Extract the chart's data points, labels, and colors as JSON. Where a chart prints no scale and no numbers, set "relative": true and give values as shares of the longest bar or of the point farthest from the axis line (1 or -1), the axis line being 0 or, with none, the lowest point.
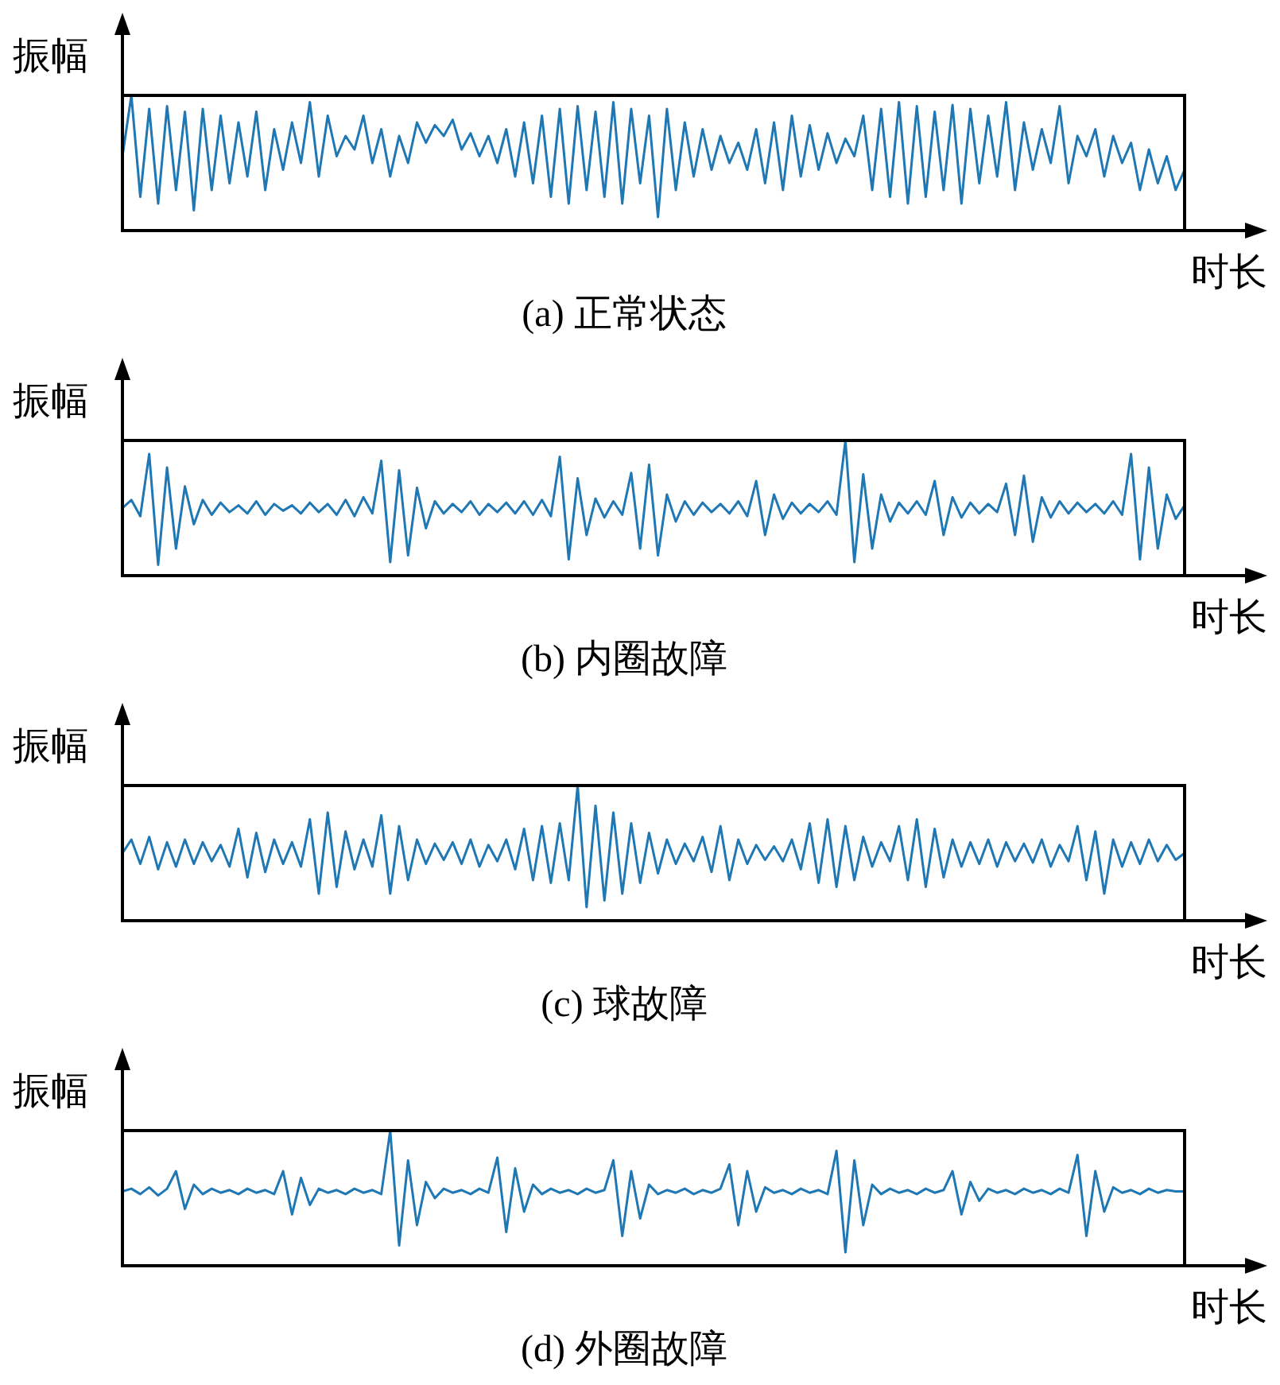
{
  "chart_data": [
    {
      "type": "line",
      "title": "(a) 正常状态",
      "xlabel": "时长",
      "ylabel": "振幅",
      "relative": true,
      "marker": "none",
      "legend": false,
      "tick_labels": false,
      "categories": [
        null,
        null,
        null,
        null,
        null,
        null,
        null,
        null,
        null,
        null,
        null,
        null,
        null,
        null,
        null,
        null,
        null,
        null,
        null,
        null,
        null,
        null,
        null,
        null,
        null,
        null,
        null,
        null,
        null,
        null,
        null,
        null,
        null,
        null,
        null,
        null,
        null,
        null,
        null,
        null,
        null,
        null,
        null,
        null,
        null,
        null,
        null,
        null,
        null,
        null,
        null,
        null,
        null,
        null,
        null,
        null,
        null,
        null,
        null,
        null,
        null,
        null,
        null,
        null,
        null,
        null,
        null,
        null,
        null,
        null,
        null,
        null,
        null,
        null,
        null,
        null,
        null,
        null,
        null,
        null,
        null,
        null,
        null,
        null,
        null,
        null,
        null,
        null,
        null,
        null,
        null,
        null,
        null,
        null,
        null,
        null,
        null,
        null,
        null,
        null,
        null,
        null,
        null,
        null,
        null,
        null,
        null,
        null,
        null,
        null,
        null,
        null,
        null,
        null,
        null,
        null,
        null,
        null,
        null,
        null
      ],
      "series": [
        {
          "color": "#1f77b4",
          "values": [
            0.55,
            1,
            0.25,
            0.9,
            0.2,
            0.92,
            0.3,
            0.88,
            0.15,
            0.9,
            0.3,
            0.85,
            0.35,
            0.8,
            0.4,
            0.88,
            0.3,
            0.75,
            0.45,
            0.8,
            0.5,
            0.95,
            0.4,
            0.85,
            0.55,
            0.7,
            0.6,
            0.85,
            0.5,
            0.75,
            0.4,
            0.7,
            0.5,
            0.8,
            0.65,
            0.78,
            0.7,
            0.82,
            0.6,
            0.72,
            0.55,
            0.7,
            0.5,
            0.75,
            0.4,
            0.8,
            0.35,
            0.85,
            0.25,
            0.9,
            0.2,
            0.92,
            0.3,
            0.88,
            0.25,
            0.95,
            0.2,
            0.9,
            0.35,
            0.85,
            0.1,
            0.9,
            0.3,
            0.8,
            0.4,
            0.75,
            0.45,
            0.7,
            0.5,
            0.65,
            0.45,
            0.75,
            0.35,
            0.8,
            0.3,
            0.85,
            0.4,
            0.78,
            0.45,
            0.72,
            0.5,
            0.68,
            0.55,
            0.85,
            0.3,
            0.9,
            0.25,
            0.95,
            0.2,
            0.92,
            0.25,
            0.88,
            0.3,
            0.93,
            0.2,
            0.9,
            0.35,
            0.85,
            0.4,
            0.95,
            0.3,
            0.8,
            0.45,
            0.75,
            0.5,
            0.92,
            0.35,
            0.7,
            0.55,
            0.75,
            0.4,
            0.7,
            0.5,
            0.65,
            0.3,
            0.6,
            0.35,
            0.55,
            0.3,
            0.45
          ]
        }
      ]
    },
    {
      "type": "line",
      "title": "(b) 内圈故障",
      "xlabel": "时长",
      "ylabel": "振幅",
      "relative": true,
      "marker": "none",
      "legend": false,
      "tick_labels": false,
      "categories": [
        null,
        null,
        null,
        null,
        null,
        null,
        null,
        null,
        null,
        null,
        null,
        null,
        null,
        null,
        null,
        null,
        null,
        null,
        null,
        null,
        null,
        null,
        null,
        null,
        null,
        null,
        null,
        null,
        null,
        null,
        null,
        null,
        null,
        null,
        null,
        null,
        null,
        null,
        null,
        null,
        null,
        null,
        null,
        null,
        null,
        null,
        null,
        null,
        null,
        null,
        null,
        null,
        null,
        null,
        null,
        null,
        null,
        null,
        null,
        null,
        null,
        null,
        null,
        null,
        null,
        null,
        null,
        null,
        null,
        null,
        null,
        null,
        null,
        null,
        null,
        null,
        null,
        null,
        null,
        null,
        null,
        null,
        null,
        null,
        null,
        null,
        null,
        null,
        null,
        null,
        null,
        null,
        null,
        null,
        null,
        null,
        null,
        null,
        null,
        null,
        null,
        null,
        null,
        null,
        null,
        null,
        null,
        null,
        null,
        null,
        null,
        null,
        null,
        null,
        null,
        null,
        null,
        null,
        null,
        null
      ],
      "series": [
        {
          "color": "#1f77b4",
          "values": [
            0.5,
            0.56,
            0.44,
            0.9,
            0.08,
            0.8,
            0.2,
            0.66,
            0.38,
            0.56,
            0.45,
            0.54,
            0.47,
            0.52,
            0.46,
            0.55,
            0.45,
            0.53,
            0.48,
            0.52,
            0.46,
            0.54,
            0.47,
            0.53,
            0.45,
            0.56,
            0.44,
            0.58,
            0.46,
            0.85,
            0.1,
            0.78,
            0.15,
            0.65,
            0.35,
            0.55,
            0.46,
            0.53,
            0.47,
            0.55,
            0.45,
            0.53,
            0.47,
            0.54,
            0.46,
            0.55,
            0.45,
            0.56,
            0.44,
            0.88,
            0.12,
            0.72,
            0.3,
            0.57,
            0.43,
            0.55,
            0.45,
            0.76,
            0.2,
            0.82,
            0.15,
            0.6,
            0.4,
            0.55,
            0.45,
            0.54,
            0.47,
            0.53,
            0.46,
            0.55,
            0.44,
            0.7,
            0.3,
            0.6,
            0.42,
            0.54,
            0.46,
            0.53,
            0.47,
            0.55,
            0.45,
            1,
            0.1,
            0.75,
            0.2,
            0.6,
            0.4,
            0.54,
            0.46,
            0.55,
            0.45,
            0.7,
            0.3,
            0.58,
            0.43,
            0.54,
            0.46,
            0.53,
            0.47,
            0.68,
            0.3,
            0.74,
            0.25,
            0.58,
            0.43,
            0.55,
            0.46,
            0.54,
            0.47,
            0.53,
            0.46,
            0.55,
            0.45,
            0.9,
            0.12,
            0.8,
            0.2,
            0.6,
            0.42,
            0.52
          ]
        }
      ]
    },
    {
      "type": "line",
      "title": "(c) 球故障",
      "xlabel": "时长",
      "ylabel": "振幅",
      "relative": true,
      "marker": "none",
      "legend": false,
      "tick_labels": false,
      "categories": [
        null,
        null,
        null,
        null,
        null,
        null,
        null,
        null,
        null,
        null,
        null,
        null,
        null,
        null,
        null,
        null,
        null,
        null,
        null,
        null,
        null,
        null,
        null,
        null,
        null,
        null,
        null,
        null,
        null,
        null,
        null,
        null,
        null,
        null,
        null,
        null,
        null,
        null,
        null,
        null,
        null,
        null,
        null,
        null,
        null,
        null,
        null,
        null,
        null,
        null,
        null,
        null,
        null,
        null,
        null,
        null,
        null,
        null,
        null,
        null,
        null,
        null,
        null,
        null,
        null,
        null,
        null,
        null,
        null,
        null,
        null,
        null,
        null,
        null,
        null,
        null,
        null,
        null,
        null,
        null,
        null,
        null,
        null,
        null,
        null,
        null,
        null,
        null,
        null,
        null,
        null,
        null,
        null,
        null,
        null,
        null,
        null,
        null,
        null,
        null,
        null,
        null,
        null,
        null,
        null,
        null,
        null,
        null,
        null,
        null,
        null,
        null,
        null,
        null,
        null,
        null,
        null,
        null,
        null,
        null
      ],
      "series": [
        {
          "color": "#1f77b4",
          "values": [
            0.5,
            0.6,
            0.42,
            0.62,
            0.38,
            0.58,
            0.4,
            0.6,
            0.42,
            0.58,
            0.44,
            0.56,
            0.4,
            0.68,
            0.32,
            0.65,
            0.36,
            0.6,
            0.42,
            0.58,
            0.4,
            0.75,
            0.2,
            0.8,
            0.25,
            0.66,
            0.38,
            0.6,
            0.4,
            0.78,
            0.2,
            0.7,
            0.3,
            0.6,
            0.42,
            0.57,
            0.45,
            0.58,
            0.42,
            0.6,
            0.4,
            0.56,
            0.44,
            0.6,
            0.38,
            0.68,
            0.3,
            0.7,
            0.28,
            0.72,
            0.3,
            1,
            0.1,
            0.85,
            0.15,
            0.8,
            0.2,
            0.72,
            0.28,
            0.65,
            0.35,
            0.6,
            0.42,
            0.57,
            0.44,
            0.62,
            0.36,
            0.7,
            0.3,
            0.6,
            0.42,
            0.56,
            0.45,
            0.55,
            0.44,
            0.6,
            0.38,
            0.72,
            0.28,
            0.75,
            0.25,
            0.7,
            0.3,
            0.62,
            0.4,
            0.58,
            0.44,
            0.7,
            0.3,
            0.75,
            0.25,
            0.68,
            0.32,
            0.6,
            0.4,
            0.58,
            0.42,
            0.6,
            0.4,
            0.58,
            0.44,
            0.57,
            0.43,
            0.6,
            0.4,
            0.56,
            0.44,
            0.7,
            0.3,
            0.66,
            0.2,
            0.6,
            0.4,
            0.58,
            0.42,
            0.6,
            0.44,
            0.56,
            0.45,
            0.5
          ]
        }
      ]
    },
    {
      "type": "line",
      "title": "(d) 外圈故障",
      "xlabel": "时长",
      "ylabel": "振幅",
      "relative": true,
      "marker": "none",
      "legend": false,
      "tick_labels": false,
      "categories": [
        null,
        null,
        null,
        null,
        null,
        null,
        null,
        null,
        null,
        null,
        null,
        null,
        null,
        null,
        null,
        null,
        null,
        null,
        null,
        null,
        null,
        null,
        null,
        null,
        null,
        null,
        null,
        null,
        null,
        null,
        null,
        null,
        null,
        null,
        null,
        null,
        null,
        null,
        null,
        null,
        null,
        null,
        null,
        null,
        null,
        null,
        null,
        null,
        null,
        null,
        null,
        null,
        null,
        null,
        null,
        null,
        null,
        null,
        null,
        null,
        null,
        null,
        null,
        null,
        null,
        null,
        null,
        null,
        null,
        null,
        null,
        null,
        null,
        null,
        null,
        null,
        null,
        null,
        null,
        null,
        null,
        null,
        null,
        null,
        null,
        null,
        null,
        null,
        null,
        null,
        null,
        null,
        null,
        null,
        null,
        null,
        null,
        null,
        null,
        null,
        null,
        null,
        null,
        null,
        null,
        null,
        null,
        null,
        null,
        null,
        null,
        null,
        null,
        null,
        null,
        null,
        null,
        null,
        null,
        null
      ],
      "series": [
        {
          "color": "#1f77b4",
          "values": [
            0.55,
            0.57,
            0.53,
            0.58,
            0.52,
            0.57,
            0.7,
            0.42,
            0.6,
            0.53,
            0.57,
            0.54,
            0.56,
            0.53,
            0.57,
            0.54,
            0.56,
            0.53,
            0.7,
            0.38,
            0.65,
            0.45,
            0.57,
            0.54,
            0.56,
            0.53,
            0.57,
            0.54,
            0.56,
            0.53,
            1,
            0.15,
            0.78,
            0.3,
            0.62,
            0.5,
            0.57,
            0.54,
            0.56,
            0.53,
            0.57,
            0.54,
            0.8,
            0.25,
            0.72,
            0.4,
            0.6,
            0.53,
            0.57,
            0.54,
            0.56,
            0.53,
            0.57,
            0.54,
            0.56,
            0.78,
            0.22,
            0.7,
            0.35,
            0.6,
            0.53,
            0.56,
            0.54,
            0.57,
            0.53,
            0.56,
            0.54,
            0.57,
            0.75,
            0.3,
            0.7,
            0.4,
            0.58,
            0.54,
            0.56,
            0.53,
            0.57,
            0.54,
            0.56,
            0.53,
            0.85,
            0.1,
            0.78,
            0.3,
            0.6,
            0.53,
            0.57,
            0.54,
            0.56,
            0.53,
            0.57,
            0.54,
            0.56,
            0.7,
            0.38,
            0.62,
            0.48,
            0.57,
            0.54,
            0.56,
            0.53,
            0.57,
            0.54,
            0.56,
            0.53,
            0.57,
            0.54,
            0.82,
            0.22,
            0.7,
            0.4,
            0.58,
            0.54,
            0.56,
            0.53,
            0.57,
            0.54,
            0.56,
            0.55,
            0.55
          ]
        }
      ]
    }
  ]
}
